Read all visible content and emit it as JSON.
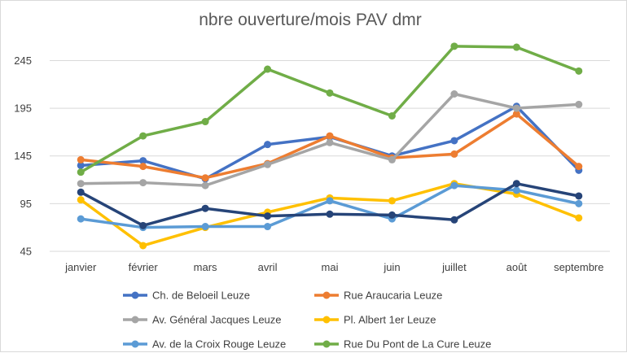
{
  "chart_data": {
    "type": "line",
    "title": "nbre ouverture/mois PAV dmr",
    "xlabel": "",
    "ylabel": "",
    "categories": [
      "janvier",
      "février",
      "mars",
      "avril",
      "mai",
      "juin",
      "juillet",
      "août",
      "septembre"
    ],
    "y_ticks": [
      45,
      95,
      145,
      195,
      245
    ],
    "ylim": [
      45,
      265
    ],
    "grid": true,
    "legend_position": "bottom",
    "series": [
      {
        "name": "Ch. de Beloeil  Leuze",
        "color": "#4472c4",
        "values": [
          135,
          140,
          121,
          157,
          165,
          145,
          161,
          197,
          130
        ]
      },
      {
        "name": "Rue Araucaria  Leuze",
        "color": "#ed7d31",
        "values": [
          141,
          134,
          122,
          137,
          166,
          143,
          147,
          189,
          134
        ]
      },
      {
        "name": "Av. Général Jacques  Leuze",
        "color": "#a5a5a5",
        "values": [
          116,
          117,
          114,
          136,
          159,
          141,
          210,
          195,
          199
        ]
      },
      {
        "name": "Pl. Albert 1er  Leuze",
        "color": "#ffc000",
        "values": [
          99,
          51,
          70,
          86,
          101,
          98,
          116,
          105,
          80
        ]
      },
      {
        "name": "Av. de la Croix Rouge  Leuze",
        "color": "#5b9bd5",
        "values": [
          79,
          70,
          71,
          71,
          98,
          79,
          114,
          109,
          95
        ]
      },
      {
        "name": "Rue Du Pont de La Cure  Leuze",
        "color": "#70ad47",
        "values": [
          128,
          166,
          181,
          236,
          211,
          187,
          260,
          259,
          234
        ]
      },
      {
        "color": "#264478",
        "values": [
          107,
          72,
          90,
          82,
          84,
          83,
          78,
          116,
          103
        ]
      }
    ]
  }
}
